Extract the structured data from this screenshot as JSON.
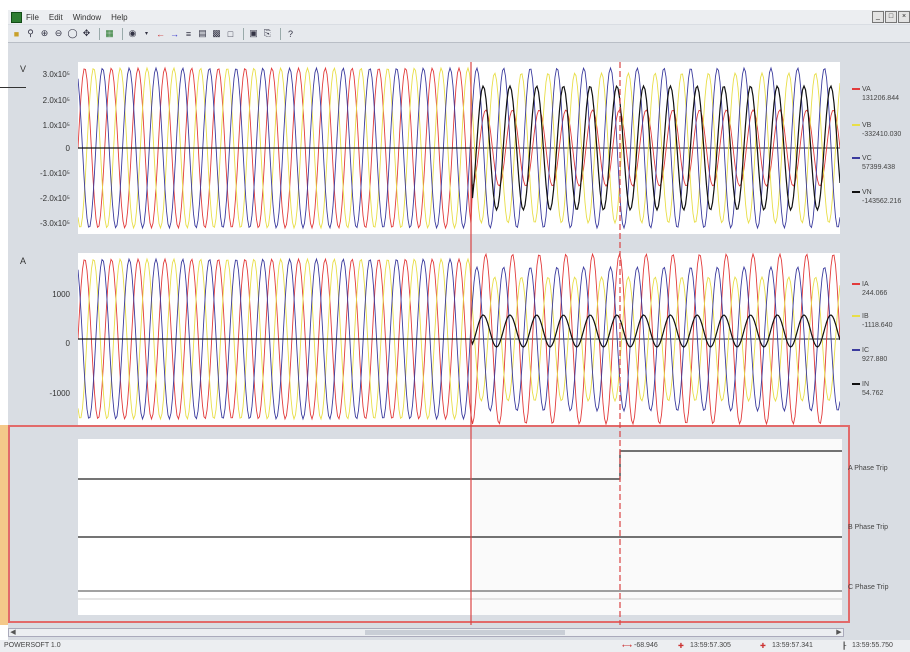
{
  "menu": [
    "File",
    "Edit",
    "Window",
    "Help"
  ],
  "window_buttons": [
    "_",
    "□",
    "×"
  ],
  "toolbar_icons": [
    "open-icon",
    "zoom-icon",
    "zoom-in-icon",
    "zoom-out-icon",
    "zoom-fit-icon",
    "pan-icon",
    "grid-icon",
    "color-icon",
    "dropdown-icon",
    "cursor-left-icon",
    "cursor-right-icon",
    "measure-icon",
    "channels-icon",
    "table-icon",
    "export-icon",
    "print-preview-icon",
    "print-icon",
    "help-icon"
  ],
  "voltage_panel": {
    "unit": "V",
    "ticks": [
      "3.0x10⁵",
      "2.0x10⁵",
      "1.0x10⁵",
      "0",
      "-1.0x10⁵",
      "-2.0x10⁵",
      "-3.0x10⁵"
    ],
    "legend": [
      {
        "name": "VA",
        "value": "131206.844",
        "color": "#e23b3b"
      },
      {
        "name": "VB",
        "value": "-332410.030",
        "color": "#e8de48"
      },
      {
        "name": "VC",
        "value": "57399.438",
        "color": "#3b3b9e"
      },
      {
        "name": "VN",
        "value": "-143562.216",
        "color": "#111111"
      }
    ]
  },
  "current_panel": {
    "unit": "A",
    "ticks": [
      "1000",
      "0",
      "-1000"
    ],
    "legend": [
      {
        "name": "IA",
        "value": "244.066",
        "color": "#e23b3b"
      },
      {
        "name": "IB",
        "value": "-1118.640",
        "color": "#e8de48"
      },
      {
        "name": "IC",
        "value": "927.880",
        "color": "#3b3b9e"
      },
      {
        "name": "IN",
        "value": "54.762",
        "color": "#111111"
      }
    ]
  },
  "digital_channels": [
    {
      "label": "A Phase Trip"
    },
    {
      "label": "B Phase Trip"
    },
    {
      "label": "C Phase Trip"
    }
  ],
  "status": {
    "left": "POWERSOFT 1.0",
    "delta": "-68.946",
    "cursor1": "13:59:57.305",
    "cursor2": "13:59:57.341",
    "time": "13:59:55.750"
  }
}
